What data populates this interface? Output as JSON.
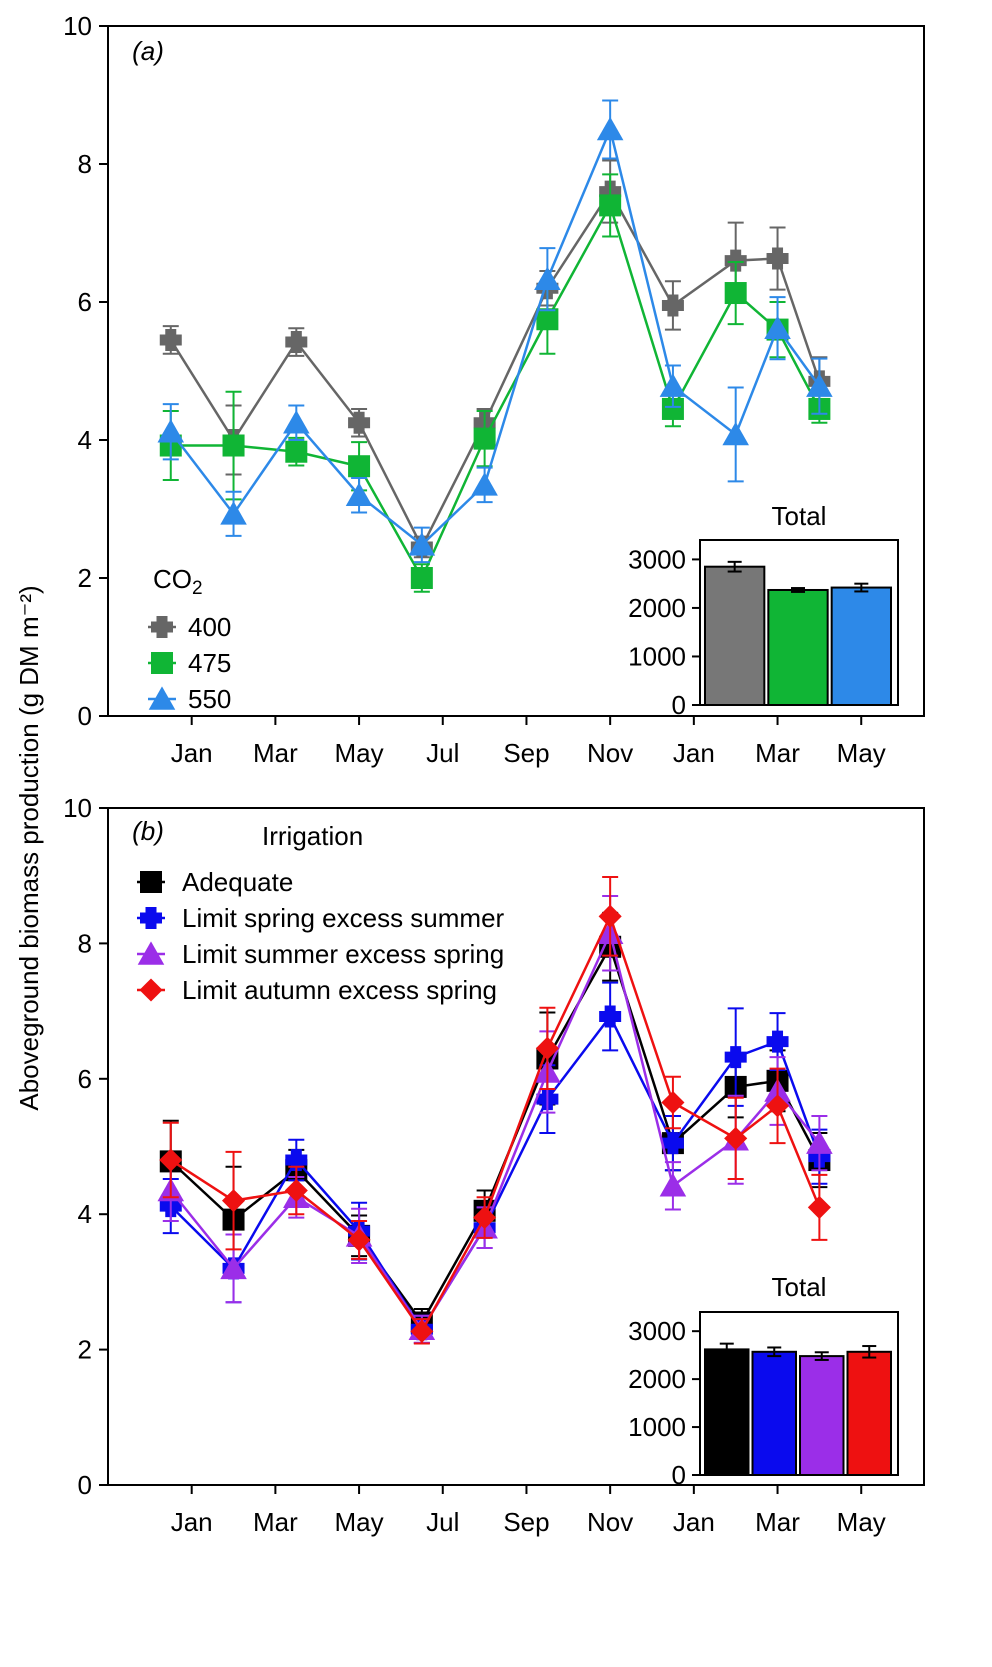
{
  "y_axis_label": "Aboveground biomass production (g DM m⁻²)",
  "x_tick_labels": [
    "Jan",
    "Mar",
    "May",
    "Jul",
    "Sep",
    "Nov",
    "Jan",
    "Mar",
    "May"
  ],
  "chart_data": [
    {
      "type": "line",
      "panel_label": "(a)",
      "legend_title": "CO₂",
      "ylim": [
        0,
        10
      ],
      "yticks": [
        0,
        2,
        4,
        6,
        8,
        10
      ],
      "x": [
        1.5,
        3.0,
        4.5,
        6.0,
        7.5,
        9.0,
        10.5,
        12.0,
        13.5,
        15.0,
        16.0,
        17.0
      ],
      "x_tick_positions": [
        2,
        4,
        6,
        8,
        10,
        12,
        14,
        16,
        18
      ],
      "xlim": [
        0,
        19.5
      ],
      "series": [
        {
          "name": "400",
          "color": "#666666",
          "marker": "plus",
          "values": [
            5.45,
            4.0,
            5.42,
            4.25,
            2.45,
            4.25,
            6.2,
            7.6,
            5.95,
            6.6,
            6.63,
            4.85
          ],
          "err": [
            0.2,
            0.5,
            0.2,
            0.2,
            0.15,
            0.2,
            0.25,
            0.45,
            0.35,
            0.55,
            0.45,
            0.35
          ]
        },
        {
          "name": "475",
          "color": "#10b535",
          "marker": "square",
          "values": [
            3.92,
            3.92,
            3.83,
            3.62,
            2.0,
            4.02,
            5.75,
            7.4,
            4.45,
            6.13,
            5.6,
            4.45
          ],
          "err": [
            0.5,
            0.78,
            0.2,
            0.35,
            0.2,
            0.4,
            0.5,
            0.45,
            0.25,
            0.45,
            0.4,
            0.2
          ]
        },
        {
          "name": "550",
          "color": "#2d89e8",
          "marker": "triangle",
          "values": [
            4.12,
            2.93,
            4.25,
            3.2,
            2.48,
            3.35,
            6.33,
            8.5,
            4.78,
            4.08,
            5.62,
            4.78
          ],
          "err": [
            0.4,
            0.32,
            0.25,
            0.25,
            0.25,
            0.25,
            0.45,
            0.42,
            0.3,
            0.68,
            0.45,
            0.4
          ]
        }
      ],
      "inset": {
        "type": "bar",
        "title": "Total",
        "categories": [
          "400",
          "475",
          "550"
        ],
        "values": [
          2850,
          2370,
          2420
        ],
        "err": [
          100,
          40,
          80
        ],
        "colors": [
          "#777777",
          "#10b535",
          "#2d89e8"
        ],
        "ylim": [
          0,
          3400
        ],
        "yticks": [
          0,
          1000,
          2000,
          3000
        ]
      }
    },
    {
      "type": "line",
      "panel_label": "(b)",
      "legend_title": "Irrigation",
      "ylim": [
        0,
        10
      ],
      "yticks": [
        0,
        2,
        4,
        6,
        8,
        10
      ],
      "x": [
        1.5,
        3.0,
        4.5,
        6.0,
        7.5,
        9.0,
        10.5,
        12.0,
        13.5,
        15.0,
        16.0,
        17.0
      ],
      "x_tick_positions": [
        2,
        4,
        6,
        8,
        10,
        12,
        14,
        16,
        18
      ],
      "xlim": [
        0,
        19.5
      ],
      "series": [
        {
          "name": "Adequate",
          "color": "#000000",
          "marker": "square",
          "values": [
            4.78,
            3.92,
            4.65,
            3.68,
            2.4,
            4.05,
            6.3,
            7.95,
            5.05,
            5.88,
            5.97,
            4.8
          ],
          "err": [
            0.6,
            0.78,
            0.3,
            0.3,
            0.2,
            0.3,
            0.68,
            0.5,
            0.4,
            0.45,
            0.45,
            0.4
          ]
        },
        {
          "name": "Limit spring excess summer",
          "color": "#0a0aee",
          "marker": "plus",
          "values": [
            4.12,
            3.2,
            4.8,
            3.75,
            2.3,
            3.8,
            5.7,
            6.92,
            5.05,
            6.32,
            6.55,
            4.85
          ],
          "err": [
            0.4,
            0.5,
            0.3,
            0.42,
            0.2,
            0.3,
            0.5,
            0.5,
            0.4,
            0.72,
            0.42,
            0.4
          ]
        },
        {
          "name": "Limit summer excess spring",
          "color": "#9b2ee8",
          "marker": "triangle",
          "values": [
            4.35,
            3.2,
            4.25,
            3.68,
            2.3,
            3.8,
            6.1,
            8.15,
            4.42,
            5.1,
            5.82,
            5.05
          ],
          "err": [
            0.45,
            0.5,
            0.3,
            0.4,
            0.2,
            0.3,
            0.6,
            0.55,
            0.35,
            0.65,
            0.5,
            0.4
          ]
        },
        {
          "name": "Limit autumn excess spring",
          "color": "#ee1111",
          "marker": "diamond",
          "values": [
            4.8,
            4.2,
            4.35,
            3.62,
            2.27,
            3.95,
            6.45,
            8.4,
            5.65,
            5.12,
            5.6,
            4.1
          ],
          "err": [
            0.55,
            0.72,
            0.35,
            0.28,
            0.18,
            0.3,
            0.6,
            0.58,
            0.38,
            0.6,
            0.55,
            0.48
          ]
        }
      ],
      "inset": {
        "type": "bar",
        "title": "Total",
        "categories": [
          "Adequate",
          "Limit spring excess summer",
          "Limit summer excess spring",
          "Limit autumn excess spring"
        ],
        "values": [
          2620,
          2570,
          2480,
          2570
        ],
        "err": [
          120,
          90,
          80,
          120
        ],
        "colors": [
          "#000000",
          "#0a0aee",
          "#9b2ee8",
          "#ee1111"
        ],
        "ylim": [
          0,
          3400
        ],
        "yticks": [
          0,
          1000,
          2000,
          3000
        ]
      }
    }
  ]
}
